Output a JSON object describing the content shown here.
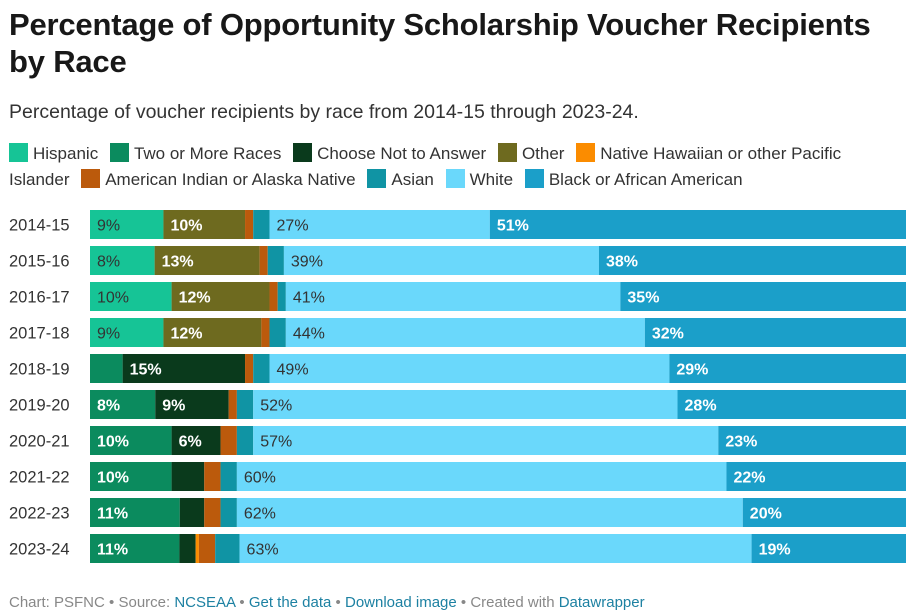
{
  "title": "Percentage of Opportunity Scholarship Voucher Recipients by Race",
  "subtitle": "Percentage of voucher recipients by race from 2014-15 through 2023-24.",
  "footer": {
    "chart_label": "Chart: PSFNC",
    "source_label": "Source:",
    "source_link": "NCSEAA",
    "get_data": "Get the data",
    "download": "Download image",
    "created_with": "Created with",
    "tool": "Datawrapper",
    "separator": "•"
  },
  "chart_data": {
    "type": "bar",
    "orientation": "horizontal",
    "stacked": true,
    "title": "Percentage of Opportunity Scholarship Voucher Recipients by Race",
    "xlim": [
      0,
      100
    ],
    "categories": [
      "2014-15",
      "2015-16",
      "2016-17",
      "2017-18",
      "2018-19",
      "2019-20",
      "2020-21",
      "2021-22",
      "2022-23",
      "2023-24"
    ],
    "series": [
      {
        "name": "Hispanic",
        "color": "#16c496",
        "values": [
          9,
          8,
          10,
          9,
          0,
          0,
          0,
          0,
          0,
          0
        ]
      },
      {
        "name": "Two or More Races",
        "color": "#0b8b5e",
        "values": [
          0,
          0,
          0,
          0,
          4,
          8,
          10,
          10,
          11,
          11
        ]
      },
      {
        "name": "Choose Not to Answer",
        "color": "#0a3a1c",
        "values": [
          0,
          0,
          0,
          0,
          15,
          9,
          6,
          4,
          3,
          2
        ]
      },
      {
        "name": "Other",
        "color": "#6e6a1f",
        "values": [
          10,
          13,
          12,
          12,
          0,
          0,
          0,
          0,
          0,
          0
        ]
      },
      {
        "name": "Native Hawaiian or other Pacific Islander",
        "color": "#fb8c00",
        "values": [
          0,
          0,
          0,
          0,
          0,
          0,
          0,
          0,
          0,
          0.4
        ]
      },
      {
        "name": "American Indian or Alaska Native",
        "color": "#bb5a0c",
        "values": [
          1,
          1,
          1,
          1,
          1,
          1,
          2,
          2,
          2,
          2
        ]
      },
      {
        "name": "Asian",
        "color": "#1094a4",
        "values": [
          2,
          2,
          1,
          2,
          2,
          2,
          2,
          2,
          2,
          3
        ]
      },
      {
        "name": "White",
        "color": "#6ad8fb",
        "values": [
          27,
          39,
          41,
          44,
          49,
          52,
          57,
          60,
          62,
          63
        ]
      },
      {
        "name": "Black or African American",
        "color": "#1b9fc9",
        "values": [
          51,
          38,
          35,
          32,
          29,
          28,
          23,
          22,
          20,
          19
        ]
      }
    ],
    "labels": [
      {
        "row": 0,
        "series": 0,
        "text": "9%"
      },
      {
        "row": 0,
        "series": 3,
        "text": "10%"
      },
      {
        "row": 0,
        "series": 7,
        "text": "27%"
      },
      {
        "row": 0,
        "series": 8,
        "text": "51%"
      },
      {
        "row": 1,
        "series": 0,
        "text": "8%"
      },
      {
        "row": 1,
        "series": 3,
        "text": "13%"
      },
      {
        "row": 1,
        "series": 7,
        "text": "39%"
      },
      {
        "row": 1,
        "series": 8,
        "text": "38%"
      },
      {
        "row": 2,
        "series": 0,
        "text": "10%"
      },
      {
        "row": 2,
        "series": 3,
        "text": "12%"
      },
      {
        "row": 2,
        "series": 7,
        "text": "41%"
      },
      {
        "row": 2,
        "series": 8,
        "text": "35%"
      },
      {
        "row": 3,
        "series": 0,
        "text": "9%"
      },
      {
        "row": 3,
        "series": 3,
        "text": "12%"
      },
      {
        "row": 3,
        "series": 7,
        "text": "44%"
      },
      {
        "row": 3,
        "series": 8,
        "text": "32%"
      },
      {
        "row": 4,
        "series": 2,
        "text": "15%"
      },
      {
        "row": 4,
        "series": 7,
        "text": "49%"
      },
      {
        "row": 4,
        "series": 8,
        "text": "29%"
      },
      {
        "row": 5,
        "series": 1,
        "text": "8%"
      },
      {
        "row": 5,
        "series": 2,
        "text": "9%"
      },
      {
        "row": 5,
        "series": 7,
        "text": "52%"
      },
      {
        "row": 5,
        "series": 8,
        "text": "28%"
      },
      {
        "row": 6,
        "series": 1,
        "text": "10%"
      },
      {
        "row": 6,
        "series": 2,
        "text": "6%"
      },
      {
        "row": 6,
        "series": 7,
        "text": "57%"
      },
      {
        "row": 6,
        "series": 8,
        "text": "23%"
      },
      {
        "row": 7,
        "series": 1,
        "text": "10%"
      },
      {
        "row": 7,
        "series": 7,
        "text": "60%"
      },
      {
        "row": 7,
        "series": 8,
        "text": "22%"
      },
      {
        "row": 8,
        "series": 1,
        "text": "11%"
      },
      {
        "row": 8,
        "series": 7,
        "text": "62%"
      },
      {
        "row": 8,
        "series": 8,
        "text": "20%"
      },
      {
        "row": 9,
        "series": 1,
        "text": "11%"
      },
      {
        "row": 9,
        "series": 7,
        "text": "63%"
      },
      {
        "row": 9,
        "series": 8,
        "text": "19%"
      }
    ],
    "label_colors": {
      "dark_text": "#333333",
      "light_text": "#ffffff"
    }
  }
}
